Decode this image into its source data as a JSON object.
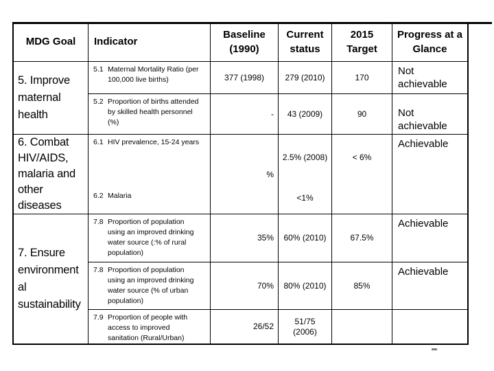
{
  "slide": {
    "background": "#ffffff",
    "text_color": "#000000",
    "border_color": "#000000",
    "dash": "-",
    "dash_color": "#7f7f7f"
  },
  "table": {
    "header": {
      "goal": "MDG Goal",
      "indicator": "Indicator",
      "baseline": "Baseline\n(1990)",
      "current": "Current\nstatus",
      "target": "2015\nTarget",
      "progress": "Progress at a\nGlance"
    },
    "goals": {
      "g5": "5. Improve\nmaternal\nhealth",
      "g6": "6. Combat\nHIV/AIDS,\nmalaria and\nother\ndiseases",
      "g7": "7. Ensure\nenvironment\nal\nsustainability"
    },
    "rows": {
      "r51": {
        "num": "5.1",
        "text": "Maternal Mortality Ratio (per\n100,000 live births)",
        "baseline": "377 (1998)",
        "current": "279 (2010)",
        "target": "170",
        "progress": "Not\nachievable"
      },
      "r52": {
        "num": "5.2",
        "text": "Proportion of births attended\nby skilled health personnel\n(%)",
        "baseline": "-",
        "current": "43 (2009)",
        "target": "90",
        "progress": "Not\nachievable"
      },
      "r6": {
        "num1": "6.1",
        "text1": "HIV prevalence, 15-24 years",
        "num2": "6.2",
        "text2": "Malaria",
        "baseline": "%",
        "current_top": "2.5% (2008)",
        "current_bottom": "<1%",
        "target": "< 6%",
        "progress": "Achievable"
      },
      "r78a": {
        "num": "7.8",
        "text": "Proportion of population\nusing an improved drinking\nwater source (:% of rural\npopulation)",
        "baseline": "35%",
        "current": "60% (2010)",
        "target": "67.5%",
        "progress": "Achievable"
      },
      "r78b": {
        "num": "7.8",
        "text": "Proportion of population\nusing an improved drinking\nwater source (% of urban\npopulation)",
        "baseline": "70%",
        "current": "80% (2010)",
        "target": "85%",
        "progress": "Achievable"
      },
      "r79": {
        "num": "7.9",
        "text": "Proportion of people with\naccess to improved\nsanitation (Rural/Urban)",
        "baseline": "26/52",
        "current": "51/75\n(2006)",
        "target": "",
        "progress": ""
      }
    }
  }
}
